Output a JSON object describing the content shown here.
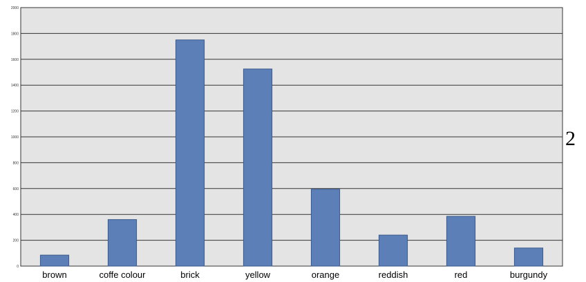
{
  "panel_label": "2",
  "colors": {
    "bar": "#5b7fb6",
    "bar_stroke": "#3b5a8c",
    "plot_background": "#e4e4e4",
    "gridline": "#333333"
  },
  "chart_data": {
    "type": "bar",
    "title": "",
    "xlabel": "",
    "ylabel": "",
    "categories": [
      "brown",
      "coffe colour",
      "brick",
      "yellow",
      "orange",
      "reddish",
      "red",
      "burgundy"
    ],
    "values": [
      85,
      360,
      1750,
      1525,
      595,
      240,
      385,
      140
    ],
    "ylim": [
      0,
      2000
    ],
    "yticks": [
      "0",
      "200",
      "400",
      "600",
      "800",
      "1000",
      "1200",
      "1400",
      "1600",
      "1800",
      "2000"
    ],
    "grid": true,
    "legend": "none"
  }
}
